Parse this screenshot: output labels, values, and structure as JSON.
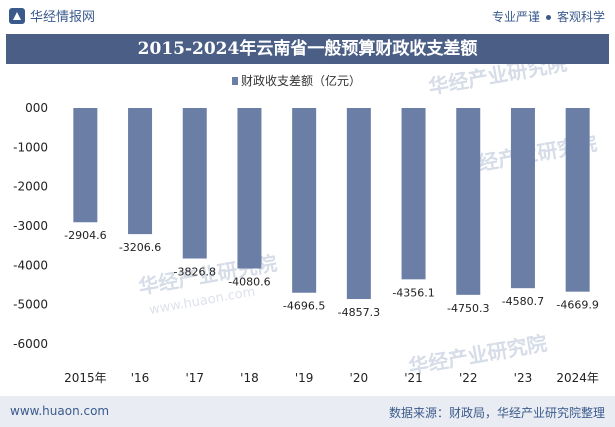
{
  "header": {
    "brand": "华经情报网",
    "tag1": "专业严谨",
    "tag2": "客观科学"
  },
  "title": "2015-2024年云南省一般预算财政收支差额",
  "watermark": "华经产业研究院",
  "watermark_url": "www.huaon.com",
  "footer": {
    "site": "www.huaon.com",
    "source": "数据来源：财政局，华经产业研究院整理"
  },
  "colors": {
    "bar": "#6b7ea6",
    "title_bg": "#4b5f86",
    "accent": "#3a5a8c"
  },
  "chart_data": {
    "type": "bar",
    "categories": [
      "2015年",
      "'16",
      "'17",
      "'18",
      "'19",
      "'20",
      "'21",
      "'22",
      "'23",
      "2024年"
    ],
    "series": [
      {
        "name": "财政收支差额（亿元）",
        "values": [
          -2904.6,
          -3206.6,
          -3826.8,
          -4080.6,
          -4696.5,
          -4857.3,
          -4356.1,
          -4750.3,
          -4580.7,
          -4669.9
        ]
      }
    ],
    "data_labels": [
      "-2904.6",
      "-3206.6",
      "-3826.8",
      "-4080.6",
      "-4696.5",
      "-4857.3",
      "-4356.1",
      "-4750.3",
      "-4580.7",
      "-4669.9"
    ],
    "ylim": [
      -6000,
      0
    ],
    "yticks": [
      0,
      -1000,
      -2000,
      -3000,
      -4000,
      -5000,
      -6000
    ],
    "ytick_labels": [
      "000",
      "-1000",
      "-2000",
      "-3000",
      "-4000",
      "-5000",
      "-6000"
    ],
    "legend": "top",
    "grid": false
  }
}
